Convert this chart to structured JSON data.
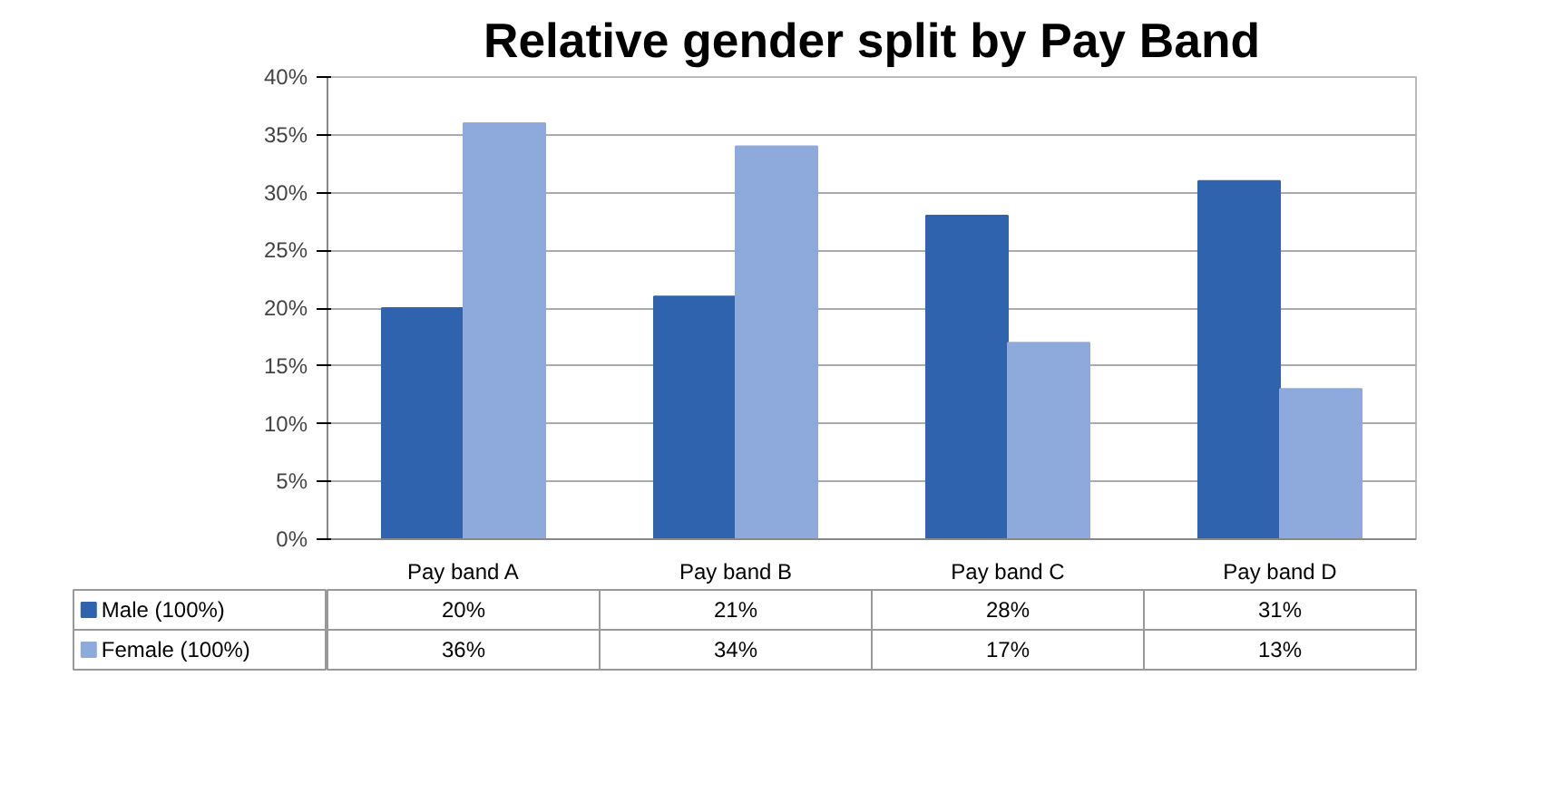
{
  "chart_data": {
    "type": "bar",
    "title": "Relative gender split by Pay Band",
    "categories": [
      "Pay band A",
      "Pay band B",
      "Pay band C",
      "Pay band D"
    ],
    "series": [
      {
        "name": "Male (100%)",
        "color": "#2f63ad",
        "values": [
          20,
          21,
          28,
          31
        ],
        "value_labels": [
          "20%",
          "21%",
          "28%",
          "31%"
        ]
      },
      {
        "name": "Female (100%)",
        "color": "#8eaadc",
        "values": [
          36,
          34,
          17,
          13
        ],
        "value_labels": [
          "36%",
          "34%",
          "17%",
          "13%"
        ]
      }
    ],
    "ylim": [
      0,
      40
    ],
    "yticks": [
      {
        "value": 0,
        "label": "0%"
      },
      {
        "value": 5,
        "label": "5%"
      },
      {
        "value": 10,
        "label": "10%"
      },
      {
        "value": 15,
        "label": "15%"
      },
      {
        "value": 20,
        "label": "20%"
      },
      {
        "value": 25,
        "label": "25%"
      },
      {
        "value": 30,
        "label": "30%"
      },
      {
        "value": 35,
        "label": "35%"
      },
      {
        "value": 40,
        "label": "40%"
      }
    ],
    "grid": "y",
    "legend": "bottom"
  }
}
